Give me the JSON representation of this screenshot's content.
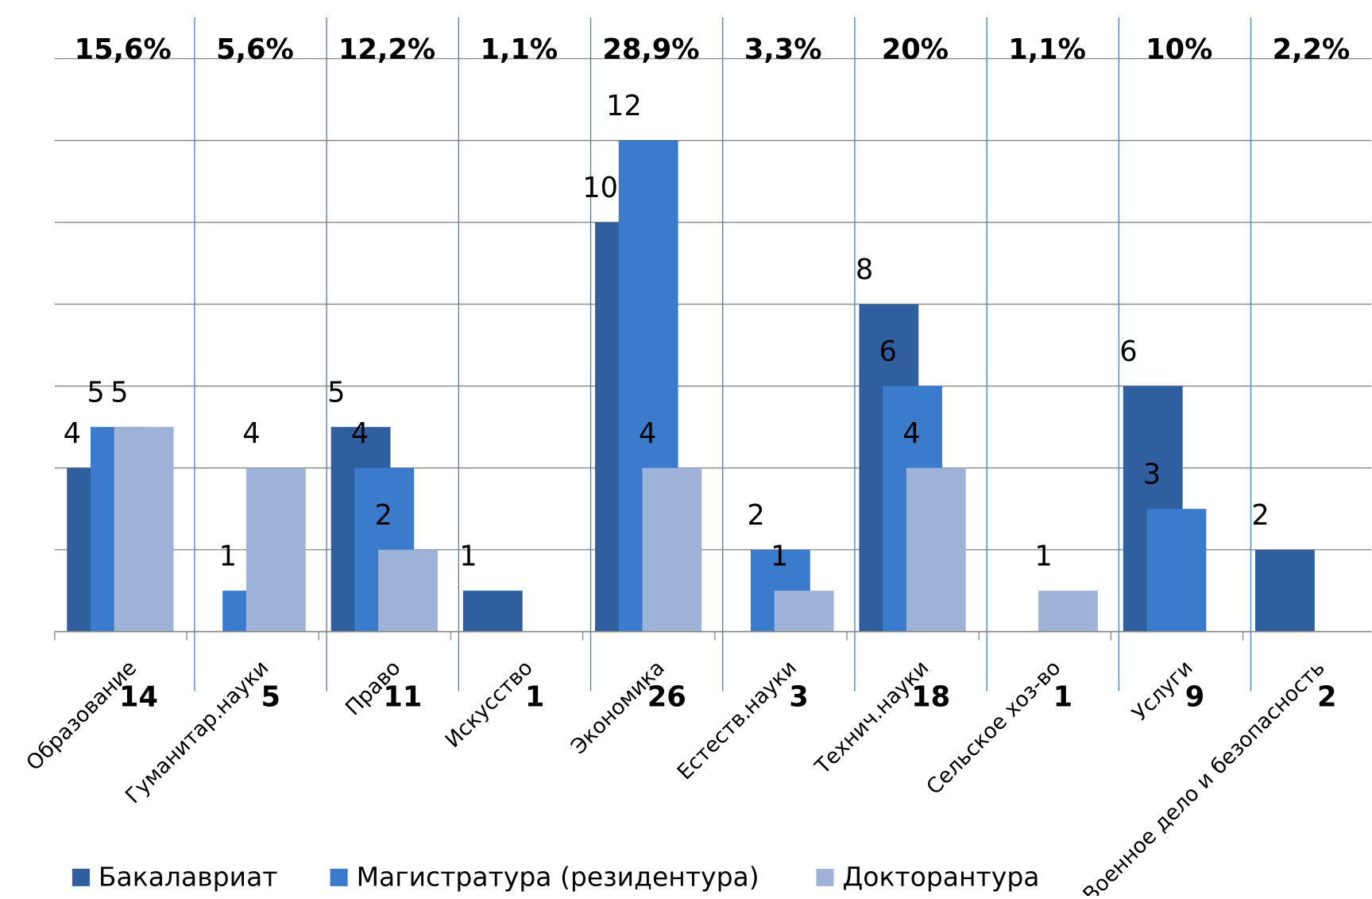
{
  "chart_data": {
    "type": "bar",
    "categories": [
      "Образование",
      "Гуманитар.науки",
      "Право",
      "Искусство",
      "Экономика",
      "Естеств.науки",
      "Технич.науки",
      "Сельское хоз-во",
      "Услуги",
      "Военное дело и безопасность"
    ],
    "series": [
      {
        "name": "Бакалавриат",
        "color": "#2f5f9f",
        "values": [
          4,
          null,
          5,
          1,
          10,
          null,
          8,
          null,
          6,
          2
        ]
      },
      {
        "name": "Магистратура (резидентура)",
        "color": "#3a7bcc",
        "values": [
          5,
          1,
          4,
          null,
          12,
          2,
          6,
          null,
          3,
          null
        ]
      },
      {
        "name": "Докторантура",
        "color": "#9fb2d8",
        "values": [
          5,
          4,
          2,
          null,
          4,
          1,
          4,
          1,
          null,
          null
        ]
      }
    ],
    "totals": [
      14,
      5,
      11,
      1,
      26,
      3,
      18,
      1,
      9,
      2
    ],
    "shares": [
      15.6,
      5.6,
      12.2,
      1.1,
      28.9,
      3.3,
      20,
      1.1,
      10,
      2.2
    ],
    "share_labels": [
      "15,6%",
      "5,6%",
      "12,2%",
      "1,1%",
      "28,9%",
      "3,3%",
      "20%",
      "1,1%",
      "10%",
      "2,2%"
    ],
    "ylim": [
      0,
      14
    ],
    "yticks": [
      0,
      2,
      4,
      6,
      8,
      10,
      12,
      14
    ],
    "grid": true,
    "legend": "bottom"
  }
}
